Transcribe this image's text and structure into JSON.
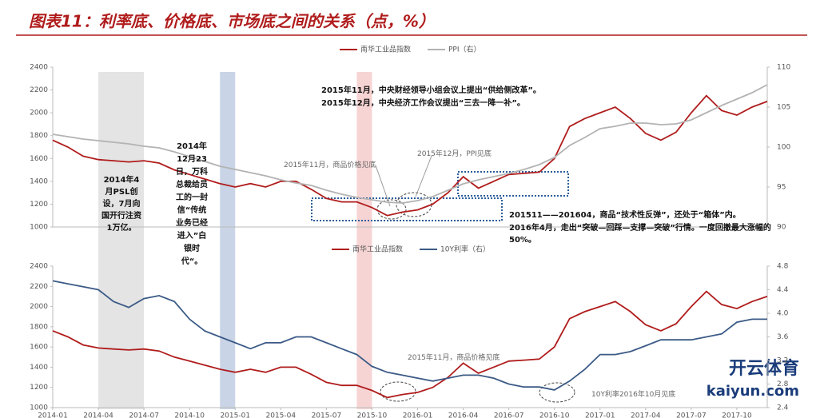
{
  "header": {
    "title": "图表11：利率底、价格底、市场底之间的关系（点，%）"
  },
  "watermark": {
    "brand": "开云体育",
    "site": "kaiyun.com"
  },
  "highlight_periods": [
    {
      "start": "2014-04",
      "end": "2014-07",
      "color": "#e4e4e4"
    },
    {
      "start": "2014-12",
      "end": "2015-01",
      "color": "#c9d4e6"
    },
    {
      "start": "2015-09",
      "end": "2015-10",
      "color": "#f7d4d4"
    }
  ],
  "chart_data": [
    {
      "type": "line",
      "legend": "top",
      "series": [
        {
          "name": "南华工业品指数",
          "color": "#b01c1c",
          "axis": "y",
          "values": [
            1760,
            1700,
            1620,
            1590,
            1580,
            1570,
            1580,
            1560,
            1500,
            1460,
            1420,
            1380,
            1350,
            1380,
            1350,
            1400,
            1400,
            1330,
            1250,
            1220,
            1220,
            1170,
            1100,
            1130,
            1150,
            1200,
            1300,
            1440,
            1340,
            1400,
            1460,
            1470,
            1480,
            1600,
            1880,
            1950,
            2000,
            2050,
            1950,
            1820,
            1760,
            1830,
            2000,
            2150,
            2020,
            1980,
            2050,
            2100
          ]
        },
        {
          "name": "PPI（右）",
          "color": "#b3b3b3",
          "axis": "y2",
          "values": [
            101.6,
            101.3,
            101.0,
            100.8,
            100.6,
            100.4,
            100.1,
            99.9,
            99.4,
            98.8,
            98.2,
            97.6,
            97.2,
            96.8,
            96.4,
            95.9,
            95.5,
            95.2,
            94.6,
            94.1,
            93.7,
            93.4,
            93.1,
            93.0,
            93.3,
            93.8,
            94.6,
            95.4,
            95.9,
            96.3,
            96.7,
            97.2,
            97.8,
            98.7,
            100.2,
            101.2,
            102.3,
            102.6,
            103.0,
            103.0,
            102.8,
            102.9,
            103.4,
            104.3,
            105.2,
            106.0,
            106.8,
            107.8
          ]
        }
      ],
      "ylim": [
        1000,
        2400
      ],
      "yticks": [
        1000,
        1200,
        1400,
        1600,
        1800,
        2000,
        2200,
        2400
      ],
      "y2lim": [
        90,
        110
      ],
      "y2ticks": [
        90,
        95,
        100,
        105,
        110
      ],
      "annotations": {
        "policy_1": "2015年11月，中央财经领导小组会议上提出“供给侧改革”。",
        "policy_2": "2015年12月，中央经济工作会议提出“三去一降一补”。",
        "price_bottom": "2015年11月，商品价格见底",
        "ppi_bottom": "2015年12月，PPI见底",
        "rebound_1": "201511——201604，商品“技术性反弹”，还处于“箱体”内。",
        "rebound_2": "2016年4月，走出“突破—回踩—支撑—突破”行情。一度回撤最大涨幅的50%。",
        "psl": "2014年4月PSL创设，7月向国开行注资1万亿。",
        "vanke": "2014年12月23日，万科总裁给员工的一封信“传统业务已经进入”白银时代“。"
      }
    },
    {
      "type": "line",
      "legend": "top",
      "categories": [
        "2014-01",
        null,
        null,
        "2014-04",
        null,
        null,
        "2014-07",
        null,
        null,
        "2014-10",
        null,
        null,
        "2015-01",
        null,
        null,
        "2015-04",
        null,
        null,
        "2015-07",
        null,
        null,
        "2015-10",
        null,
        null,
        "2016-01",
        null,
        null,
        "2016-04",
        null,
        null,
        "2016-07",
        null,
        null,
        "2016-10",
        null,
        null,
        "2017-01",
        null,
        null,
        "2017-04",
        null,
        null,
        "2017-07",
        null,
        null,
        "2017-10",
        null,
        null
      ],
      "series": [
        {
          "name": "南华工业品指数",
          "color": "#b01c1c",
          "axis": "y",
          "values": [
            1760,
            1700,
            1620,
            1590,
            1580,
            1570,
            1580,
            1560,
            1500,
            1460,
            1420,
            1380,
            1350,
            1380,
            1350,
            1400,
            1400,
            1330,
            1250,
            1220,
            1220,
            1170,
            1100,
            1130,
            1150,
            1200,
            1300,
            1440,
            1340,
            1400,
            1460,
            1470,
            1480,
            1600,
            1880,
            1950,
            2000,
            2050,
            1950,
            1820,
            1760,
            1830,
            2000,
            2150,
            2020,
            1980,
            2050,
            2100
          ]
        },
        {
          "name": "10Y利率（右）",
          "color": "#3b5a86",
          "axis": "y2",
          "values": [
            4.55,
            4.5,
            4.45,
            4.4,
            4.2,
            4.1,
            4.25,
            4.3,
            4.2,
            3.9,
            3.7,
            3.6,
            3.5,
            3.4,
            3.5,
            3.5,
            3.6,
            3.6,
            3.5,
            3.4,
            3.3,
            3.1,
            3.0,
            2.95,
            2.9,
            2.85,
            2.9,
            2.95,
            2.95,
            2.9,
            2.8,
            2.75,
            2.75,
            2.7,
            2.85,
            3.05,
            3.3,
            3.3,
            3.35,
            3.45,
            3.55,
            3.55,
            3.55,
            3.6,
            3.65,
            3.85,
            3.9,
            3.9
          ]
        }
      ],
      "ylim": [
        1000,
        2400
      ],
      "yticks": [
        1000,
        1200,
        1400,
        1600,
        1800,
        2000,
        2200,
        2400
      ],
      "y2lim": [
        2.4,
        4.8
      ],
      "y2ticks": [
        2.4,
        2.8,
        3.2,
        3.6,
        {
          "value": 4,
          "label": "4.0"
        },
        4.4,
        4.8
      ],
      "annotations": {
        "price_bottom": "2015年11月，商品价格见底",
        "rate_bottom": "10Y利率2016年10月见底"
      }
    }
  ]
}
